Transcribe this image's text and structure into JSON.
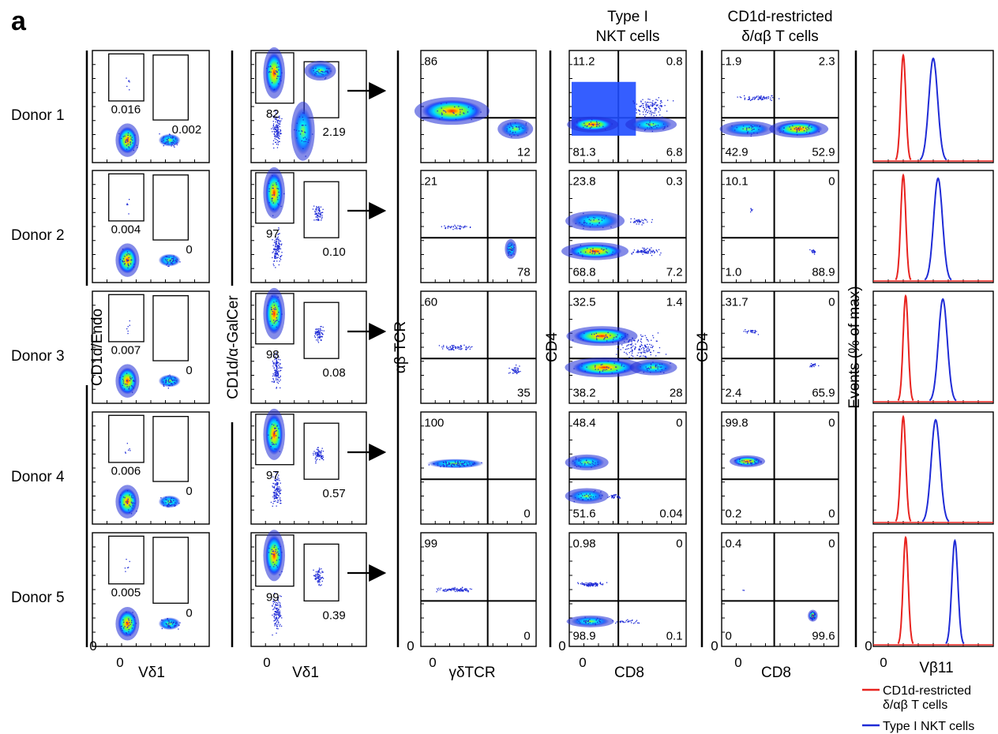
{
  "panel_label": "a",
  "donors": [
    "Donor 1",
    "Donor 2",
    "Donor 3",
    "Donor 4",
    "Donor 5"
  ],
  "column_titles": {
    "type1": [
      "Type I",
      "NKT cells"
    ],
    "cd1d": [
      "CD1d-restricted",
      "δ/αβ T cells"
    ]
  },
  "axes": {
    "col1": {
      "y": "CD1d/Endo",
      "x": "Vδ1",
      "x_zero": "0",
      "y_zero": "0"
    },
    "col2": {
      "y": "CD1d/α-GalCer",
      "x": "Vδ1",
      "x_zero": "0"
    },
    "col3": {
      "y": "αβ TCR",
      "x": "γδTCR",
      "x_zero": "0",
      "y_zero": "0"
    },
    "col4": {
      "y": "CD4",
      "x": "CD8",
      "x_zero": "0",
      "y_zero": "0"
    },
    "col5": {
      "y": "CD4",
      "x": "CD8",
      "x_zero": "0",
      "y_zero": "0"
    },
    "col6": {
      "y": "Events (% of max)",
      "x": "Vβ11",
      "x_zero": "0",
      "y_zero": "0"
    }
  },
  "col1_values": [
    {
      "left": "0.016",
      "right": "0.002"
    },
    {
      "left": "0.004",
      "right": "0"
    },
    {
      "left": "0.007",
      "right": "0"
    },
    {
      "left": "0.006",
      "right": "0"
    },
    {
      "left": "0.005",
      "right": "0"
    }
  ],
  "col2_values": [
    {
      "left": "82",
      "right": "2.19"
    },
    {
      "left": "97",
      "right": "0.10"
    },
    {
      "left": "98",
      "right": "0.08"
    },
    {
      "left": "97",
      "right": "0.57"
    },
    {
      "left": "99",
      "right": "0.39"
    }
  ],
  "col3_values": [
    {
      "tl": "86",
      "br": "12"
    },
    {
      "tl": "21",
      "br": "78"
    },
    {
      "tl": "60",
      "br": "35"
    },
    {
      "tl": "100",
      "br": "0"
    },
    {
      "tl": "99",
      "br": "0"
    }
  ],
  "col4_values": [
    {
      "tl": "11.2",
      "tr": "0.8",
      "bl": "81.3",
      "br": "6.8"
    },
    {
      "tl": "23.8",
      "tr": "0.3",
      "bl": "68.8",
      "br": "7.2"
    },
    {
      "tl": "32.5",
      "tr": "1.4",
      "bl": "38.2",
      "br": "28"
    },
    {
      "tl": "48.4",
      "tr": "0",
      "bl": "51.6",
      "br": "0.04"
    },
    {
      "tl": "0.98",
      "tr": "0",
      "bl": "98.9",
      "br": "0.1"
    }
  ],
  "col5_values": [
    {
      "tl": "1.9",
      "tr": "2.3",
      "bl": "42.9",
      "br": "52.9"
    },
    {
      "tl": "10.1",
      "tr": "0",
      "bl": "1.0",
      "br": "88.9"
    },
    {
      "tl": "31.7",
      "tr": "0",
      "bl": "2.4",
      "br": "65.9"
    },
    {
      "tl": "99.8",
      "tr": "0",
      "bl": "0.2",
      "br": "0"
    },
    {
      "tl": "0.4",
      "tr": "0",
      "bl": "0",
      "br": "99.6"
    }
  ],
  "legend": [
    {
      "label1": "CD1d-restricted",
      "label2": "δ/αβ T cells",
      "color": "#e8231f"
    },
    {
      "label1": "Type I NKT cells",
      "label2": "",
      "color": "#1f2bd6"
    }
  ],
  "colors": {
    "red": "#e8231f",
    "blue": "#1f2bd6"
  }
}
